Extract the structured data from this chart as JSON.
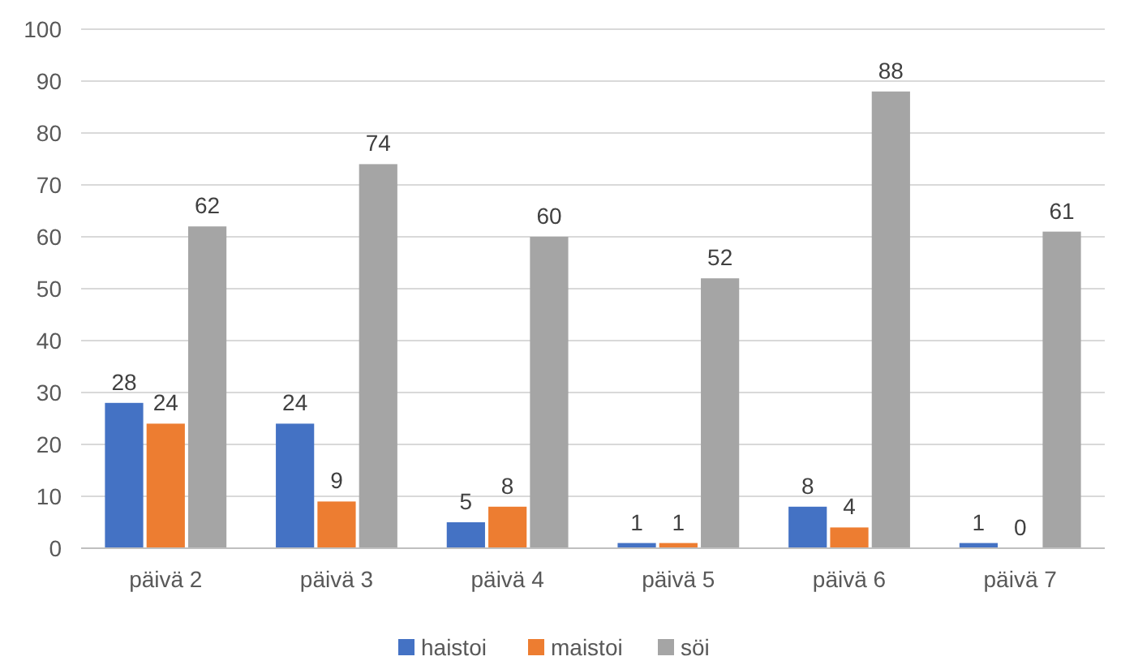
{
  "chart_data": {
    "type": "bar",
    "categories": [
      "päivä 2",
      "päivä 3",
      "päivä 4",
      "päivä 5",
      "päivä 6",
      "päivä 7"
    ],
    "series": [
      {
        "name": "haistoi",
        "color": "#4472c4",
        "values": [
          28,
          24,
          5,
          1,
          8,
          1
        ]
      },
      {
        "name": "maistoi",
        "color": "#ed7d31",
        "values": [
          24,
          9,
          8,
          1,
          4,
          0
        ]
      },
      {
        "name": "söi",
        "color": "#a5a5a5",
        "values": [
          62,
          74,
          60,
          52,
          88,
          61
        ]
      }
    ],
    "ylim": [
      0,
      100
    ],
    "yticks": [
      0,
      10,
      20,
      30,
      40,
      50,
      60,
      70,
      80,
      90,
      100
    ],
    "grid": "y",
    "legend": "bottom",
    "data_labels": true
  }
}
